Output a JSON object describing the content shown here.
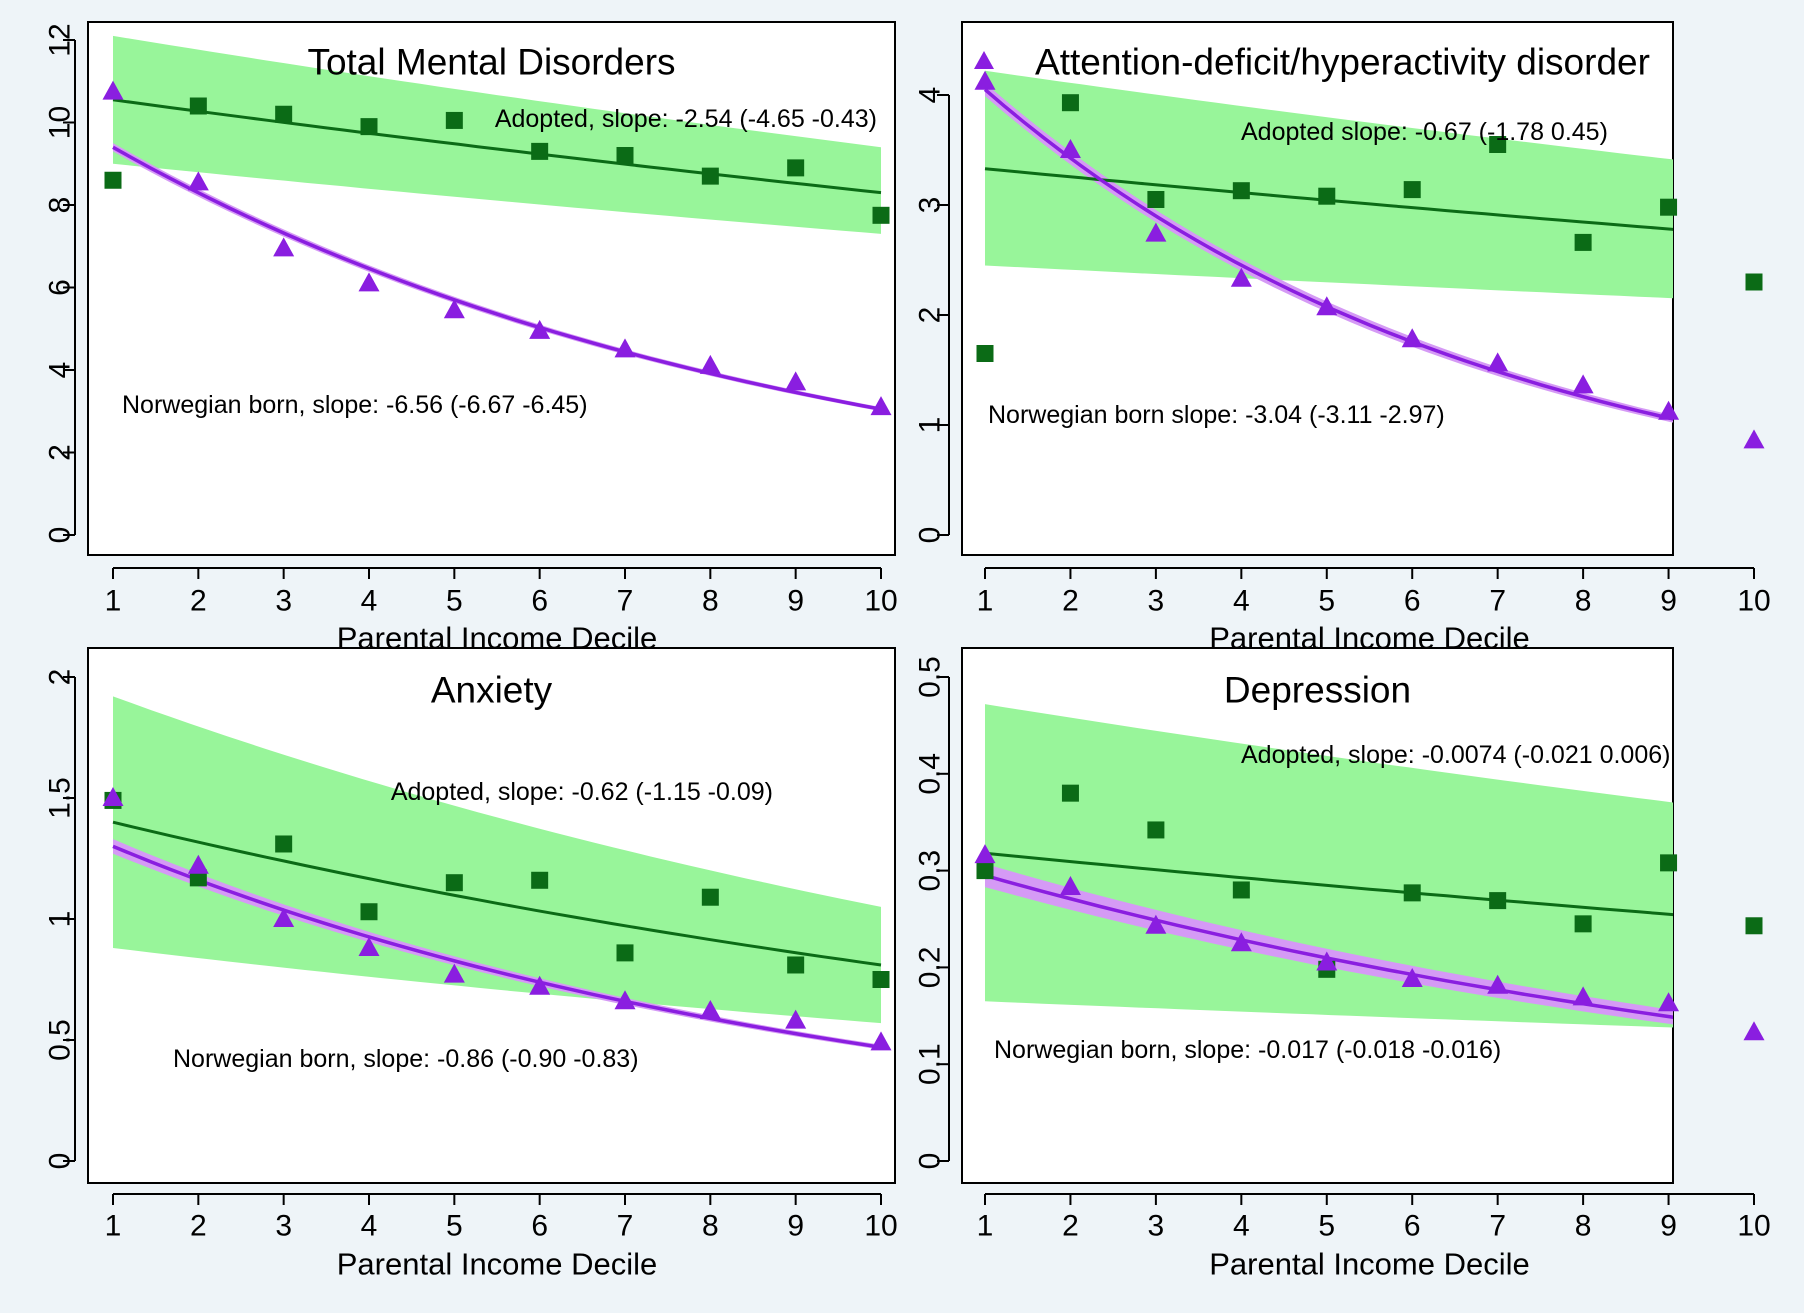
{
  "chart_data": [
    {
      "type": "scatter",
      "title": "Total Mental Disorders",
      "xlabel": "Parental Income Decile",
      "ylabel": "",
      "x": [
        1,
        2,
        3,
        4,
        5,
        6,
        7,
        8,
        9,
        10
      ],
      "xlim": [
        1,
        10
      ],
      "ylim": [
        0,
        12
      ],
      "yticks": [
        0,
        2,
        4,
        6,
        8,
        10,
        12
      ],
      "ytick_labels": [
        "0",
        "2",
        "4",
        "6",
        "8",
        "10",
        "12"
      ],
      "series": [
        {
          "marker": "square",
          "color": "#0b6b16",
          "band_color": "#98f59a",
          "values": [
            8.6,
            10.4,
            10.2,
            9.9,
            10.05,
            9.3,
            9.2,
            8.7,
            8.9,
            7.75
          ],
          "fit_start": 10.55,
          "fit_end": 8.3,
          "band_start": [
            9.0,
            12.1
          ],
          "band_end": [
            7.3,
            9.4
          ],
          "annotation": "Adopted, slope: -2.54 (-4.65 -0.43)"
        },
        {
          "marker": "triangle",
          "color": "#8a1ee0",
          "band_color": "#d59af5",
          "values": [
            10.75,
            8.55,
            6.95,
            6.1,
            5.45,
            4.95,
            4.5,
            4.1,
            3.7,
            3.1
          ],
          "fit_start": 9.4,
          "fit_end": 3.05,
          "band_start": [
            9.3,
            9.5
          ],
          "band_end": [
            3.0,
            3.1
          ],
          "annotation": "Norwegian born, slope: -6.56 (-6.67 -6.45)"
        }
      ]
    },
    {
      "type": "scatter",
      "title": "Attention-deficit/hyperactivity disorder",
      "xlabel": "Parental Income Decile",
      "ylabel": "",
      "x": [
        1,
        2,
        3,
        4,
        5,
        6,
        7,
        8,
        9,
        10
      ],
      "xlim": [
        1,
        10
      ],
      "ylim": [
        0,
        4.5
      ],
      "yticks": [
        0,
        1,
        2,
        3,
        4
      ],
      "ytick_labels": [
        "0",
        "1",
        "2",
        "3",
        "4"
      ],
      "legend_marker": "triangle",
      "series": [
        {
          "marker": "square",
          "color": "#0b6b16",
          "band_color": "#98f59a",
          "values": [
            1.65,
            3.93,
            3.05,
            3.13,
            3.08,
            3.14,
            3.55,
            2.66,
            2.98,
            2.3
          ],
          "fit_start": 3.33,
          "fit_end": 2.72,
          "band_start": [
            2.45,
            4.22
          ],
          "band_end": [
            2.12,
            3.33
          ],
          "annotation": "Adopted slope: -0.67 (-1.78 0.45)"
        },
        {
          "marker": "triangle",
          "color": "#8a1ee0",
          "band_color": "#d59af5",
          "values": [
            4.12,
            3.5,
            2.74,
            2.33,
            2.07,
            1.78,
            1.56,
            1.36,
            1.12,
            0.86
          ],
          "fit_start": 4.05,
          "fit_end": 0.9,
          "band_start": [
            3.99,
            4.11
          ],
          "band_end": [
            0.87,
            0.93
          ],
          "annotation": "Norwegian born slope: -3.04 (-3.11 -2.97)"
        }
      ]
    },
    {
      "type": "scatter",
      "title": "Anxiety",
      "xlabel": "Parental Income Decile",
      "ylabel": "",
      "x": [
        1,
        2,
        3,
        4,
        5,
        6,
        7,
        8,
        9,
        10
      ],
      "xlim": [
        1,
        10
      ],
      "ylim": [
        0,
        2
      ],
      "yticks": [
        0,
        0.5,
        1,
        1.5,
        2
      ],
      "ytick_labels": [
        "0",
        "0.5",
        "1",
        "1.5",
        "2"
      ],
      "series": [
        {
          "marker": "square",
          "color": "#0b6b16",
          "band_color": "#98f59a",
          "values": [
            1.49,
            1.17,
            1.31,
            1.03,
            1.15,
            1.16,
            0.86,
            1.09,
            0.81,
            0.75
          ],
          "fit_start": 1.4,
          "fit_end": 0.81,
          "band_start": [
            0.88,
            1.92
          ],
          "band_end": [
            0.57,
            1.05
          ],
          "annotation": "Adopted, slope: -0.62 (-1.15 -0.09)"
        },
        {
          "marker": "triangle",
          "color": "#8a1ee0",
          "band_color": "#d59af5",
          "values": [
            1.5,
            1.22,
            1.0,
            0.88,
            0.77,
            0.72,
            0.66,
            0.62,
            0.58,
            0.49
          ],
          "fit_start": 1.3,
          "fit_end": 0.47,
          "band_start": [
            1.27,
            1.33
          ],
          "band_end": [
            0.46,
            0.48
          ],
          "annotation": "Norwegian born, slope: -0.86 (-0.90 -0.83)"
        }
      ]
    },
    {
      "type": "scatter",
      "title": "Depression",
      "xlabel": "Parental Income Decile",
      "ylabel": "",
      "x": [
        1,
        2,
        3,
        4,
        5,
        6,
        7,
        8,
        9,
        10
      ],
      "xlim": [
        1,
        10
      ],
      "ylim": [
        0,
        0.5
      ],
      "yticks": [
        0,
        0.1,
        0.2,
        0.3,
        0.4,
        0.5
      ],
      "ytick_labels": [
        "0",
        "0.1",
        "0.2",
        "0.3",
        "0.4",
        "0.5"
      ],
      "series": [
        {
          "marker": "square",
          "color": "#0b6b16",
          "band_color": "#98f59a",
          "values": [
            0.3,
            0.38,
            0.342,
            0.28,
            0.198,
            0.277,
            0.269,
            0.245,
            0.308,
            0.243
          ],
          "fit_start": 0.318,
          "fit_end": 0.248,
          "band_start": [
            0.165,
            0.472
          ],
          "band_end": [
            0.135,
            0.36
          ],
          "annotation": "Adopted, slope: -0.0074 (-0.021 0.006)"
        },
        {
          "marker": "triangle",
          "color": "#8a1ee0",
          "band_color": "#d59af5",
          "values": [
            0.316,
            0.283,
            0.243,
            0.225,
            0.205,
            0.188,
            0.181,
            0.169,
            0.163,
            0.133
          ],
          "fit_start": 0.295,
          "fit_end": 0.137,
          "band_start": [
            0.283,
            0.307
          ],
          "band_end": [
            0.13,
            0.144
          ],
          "annotation": "Norwegian born, slope: -0.017 (-0.018 -0.016)"
        }
      ]
    }
  ]
}
